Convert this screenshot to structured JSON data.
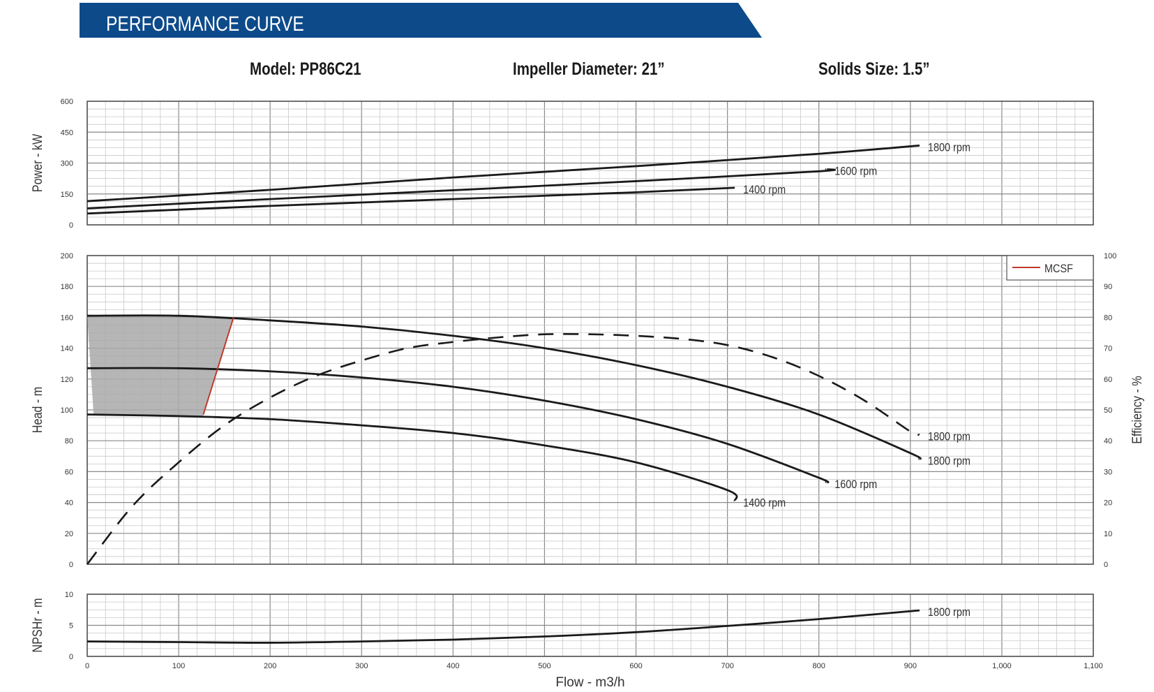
{
  "header": {
    "title": "PERFORMANCE CURVE",
    "model": "Model: PP86C21",
    "impeller": "Impeller Diameter: 21”",
    "solids": "Solids Size: 1.5”",
    "brand_color": "#0d4a8a"
  },
  "chart_data": [
    {
      "type": "line",
      "panel": "power",
      "ylabel": "Power - kW",
      "xlim": [
        0,
        1100
      ],
      "ylim": [
        0,
        600
      ],
      "yticks": [
        "0",
        "150",
        "300",
        "450",
        "600"
      ],
      "grid": true,
      "series": [
        {
          "name": "1800 rpm",
          "x": [
            0,
            200,
            400,
            600,
            800,
            910
          ],
          "y": [
            115,
            170,
            230,
            285,
            345,
            385
          ]
        },
        {
          "name": "1600 rpm",
          "x": [
            0,
            200,
            400,
            600,
            800,
            808
          ],
          "y": [
            80,
            125,
            168,
            212,
            260,
            270
          ]
        },
        {
          "name": "1400 rpm",
          "x": [
            0,
            200,
            400,
            600,
            708
          ],
          "y": [
            55,
            92,
            125,
            158,
            180
          ]
        }
      ]
    },
    {
      "type": "line",
      "panel": "head",
      "ylabel": "Head - m",
      "y2label": "Efficiency - %",
      "xlim": [
        0,
        1100
      ],
      "ylim": [
        0,
        200
      ],
      "y2lim": [
        0,
        100
      ],
      "yticks": [
        "0",
        "20",
        "40",
        "60",
        "80",
        "100",
        "120",
        "140",
        "160",
        "180",
        "200"
      ],
      "y2ticks": [
        "0",
        "10",
        "20",
        "30",
        "40",
        "50",
        "60",
        "70",
        "80",
        "90",
        "100"
      ],
      "grid": true,
      "legend": {
        "entries": [
          "MCSF"
        ],
        "position": "top-right",
        "color": "#c0392b"
      },
      "series": [
        {
          "name": "1800 rpm",
          "x": [
            0,
            100,
            200,
            300,
            400,
            500,
            600,
            700,
            800,
            900,
            910
          ],
          "y": [
            161,
            161,
            158,
            154,
            148,
            140,
            129,
            115,
            97,
            72,
            68
          ]
        },
        {
          "name": "1600 rpm",
          "x": [
            0,
            100,
            200,
            300,
            400,
            500,
            600,
            700,
            800,
            808
          ],
          "y": [
            127,
            127,
            125,
            121,
            115,
            106,
            94,
            78,
            56,
            53
          ]
        },
        {
          "name": "1400 rpm",
          "x": [
            0,
            100,
            200,
            300,
            400,
            500,
            600,
            700,
            708
          ],
          "y": [
            97,
            96,
            94,
            90,
            85,
            77,
            66,
            48,
            41
          ]
        },
        {
          "name": "1800 rpm",
          "axis": "efficiency",
          "dashed": true,
          "x": [
            0,
            50,
            100,
            150,
            200,
            250,
            300,
            350,
            400,
            450,
            500,
            550,
            600,
            650,
            700,
            750,
            800,
            850,
            900,
            910
          ],
          "y": [
            0,
            19,
            33,
            45,
            54,
            61,
            66,
            70,
            72,
            73.5,
            74.5,
            74.5,
            74,
            73,
            71,
            67,
            61,
            53,
            43,
            42
          ]
        }
      ],
      "mcsf": {
        "x": [
          160,
          127
        ],
        "y": [
          160,
          97
        ]
      }
    },
    {
      "type": "line",
      "panel": "npshr",
      "ylabel": "NPSHr - m",
      "xlabel": "Flow - m3/h",
      "xlim": [
        0,
        1100
      ],
      "ylim": [
        0,
        10
      ],
      "xticks": [
        "0",
        "100",
        "200",
        "300",
        "400",
        "500",
        "600",
        "700",
        "800",
        "900",
        "1,000",
        "1,100"
      ],
      "yticks": [
        "0",
        "5",
        "10"
      ],
      "grid": true,
      "series": [
        {
          "name": "1800 rpm",
          "x": [
            0,
            100,
            200,
            300,
            400,
            500,
            600,
            700,
            800,
            910
          ],
          "y": [
            2.4,
            2.3,
            2.2,
            2.4,
            2.7,
            3.2,
            3.9,
            4.9,
            6.0,
            7.4
          ]
        }
      ]
    }
  ]
}
